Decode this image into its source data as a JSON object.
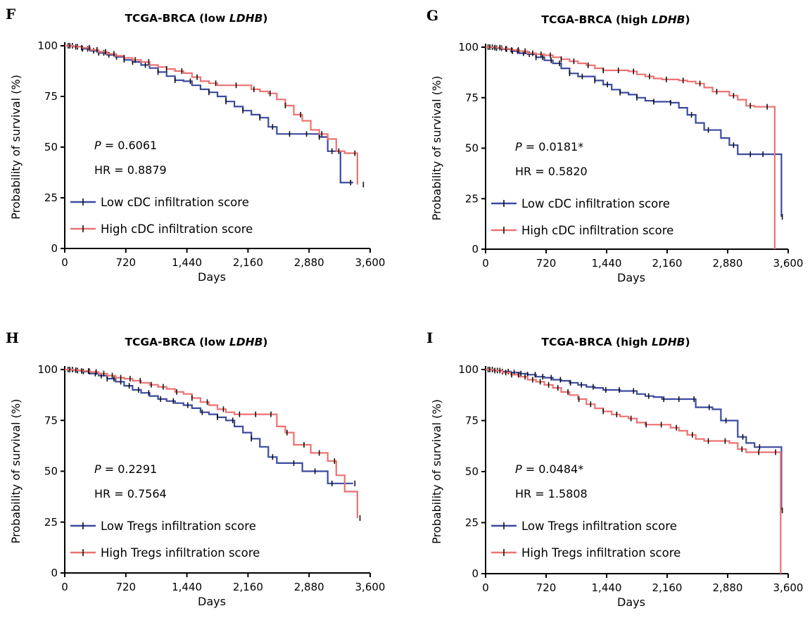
{
  "colors": {
    "low": "#3b4aa0",
    "high": "#ec7272",
    "censor": "#111111",
    "axis": "#000000"
  },
  "chart_data": [
    {
      "type": "line",
      "panel": "F",
      "title_prefix": "TCGA-BRCA (low ",
      "title_gene": "LDHB",
      "title_suffix": ")",
      "xlabel": "Days",
      "ylabel": "Probability of survival (%)",
      "xlim": [
        0,
        3600
      ],
      "ylim": [
        0,
        100
      ],
      "xticks": [
        0,
        720,
        1440,
        2160,
        2880,
        3600
      ],
      "xtick_labels": [
        "0",
        "720",
        "1,440",
        "2,160",
        "2,880",
        "3,600"
      ],
      "yticks": [
        0,
        25,
        50,
        75,
        100
      ],
      "ytick_labels": [
        "0",
        "25",
        "50",
        "75",
        "100"
      ],
      "p_label": "P",
      "p_value": " = 0.6061",
      "hr_text": "HR = 0.8879",
      "grid": false,
      "legend_position": "bottom-left",
      "series": [
        {
          "name": "Low cDC infiltration score",
          "color_key": "low",
          "x": [
            0,
            100,
            200,
            300,
            400,
            500,
            600,
            700,
            800,
            900,
            1000,
            1100,
            1200,
            1300,
            1400,
            1500,
            1600,
            1700,
            1800,
            1900,
            2000,
            2100,
            2200,
            2300,
            2400,
            2500,
            2600,
            2700,
            2800,
            2900,
            3000,
            3100,
            3200,
            3250,
            3400
          ],
          "y": [
            100,
            99.5,
            98.5,
            97.5,
            96.5,
            95.5,
            94.5,
            93,
            92,
            90.5,
            89,
            87,
            85,
            83,
            82.5,
            80.5,
            78.5,
            77,
            75,
            72.5,
            70,
            68,
            66,
            64.5,
            60,
            56.5,
            56.5,
            56.5,
            56.5,
            56.5,
            55,
            48,
            48,
            32.5,
            32.5
          ],
          "censor_x": [
            40,
            90,
            150,
            210,
            270,
            340,
            400,
            460,
            520,
            610,
            700,
            800,
            950,
            1100,
            1300,
            1480,
            1700,
            1900,
            2100,
            2300,
            2450,
            2650,
            2850,
            3000,
            3150,
            3370
          ]
        },
        {
          "name": "High cDC infiltration score",
          "color_key": "high",
          "x": [
            0,
            100,
            200,
            300,
            400,
            500,
            600,
            700,
            800,
            900,
            1000,
            1100,
            1200,
            1300,
            1400,
            1500,
            1600,
            1700,
            1800,
            1900,
            2000,
            2100,
            2200,
            2300,
            2400,
            2500,
            2600,
            2700,
            2800,
            2900,
            3000,
            3100,
            3200,
            3300,
            3400,
            3450
          ],
          "y": [
            100,
            99.5,
            99,
            98,
            97,
            96,
            95,
            94,
            93,
            92,
            90.5,
            89.5,
            88.5,
            87.5,
            86.5,
            84.5,
            82.5,
            81.5,
            80.5,
            80.5,
            80.5,
            80.5,
            78.5,
            77.5,
            76.5,
            73.5,
            70.5,
            66,
            63,
            58.5,
            56.5,
            54,
            48,
            47,
            47,
            31.5
          ],
          "censor_x": [
            60,
            130,
            200,
            290,
            380,
            480,
            580,
            700,
            830,
            990,
            1200,
            1380,
            1560,
            1780,
            2020,
            2230,
            2420,
            2600,
            2780,
            3030,
            3230,
            3420,
            3520
          ]
        }
      ]
    },
    {
      "type": "line",
      "panel": "G",
      "title_prefix": "TCGA-BRCA (high ",
      "title_gene": "LDHB",
      "title_suffix": ")",
      "xlabel": "Days",
      "ylabel": "Probability of survival (%)",
      "xlim": [
        0,
        3600
      ],
      "ylim": [
        0,
        100
      ],
      "xticks": [
        0,
        720,
        1440,
        2160,
        2880,
        3600
      ],
      "xtick_labels": [
        "0",
        "720",
        "1,440",
        "2,160",
        "2,880",
        "3,600"
      ],
      "yticks": [
        0,
        25,
        50,
        75,
        100
      ],
      "ytick_labels": [
        "0",
        "25",
        "50",
        "75",
        "100"
      ],
      "p_label": "P",
      "p_value": " = 0.0181*",
      "hr_text": "HR = 0.5820",
      "grid": false,
      "legend_position": "bottom-left",
      "series": [
        {
          "name": "Low cDC infiltration score",
          "color_key": "low",
          "x": [
            0,
            100,
            200,
            300,
            400,
            500,
            600,
            700,
            800,
            900,
            1000,
            1100,
            1200,
            1300,
            1400,
            1500,
            1600,
            1700,
            1800,
            1900,
            2000,
            2100,
            2200,
            2300,
            2400,
            2500,
            2600,
            2700,
            2800,
            2900,
            3000,
            3100,
            3200,
            3300,
            3400,
            3500,
            3520
          ],
          "y": [
            100,
            99.5,
            99,
            98,
            97,
            96.5,
            95,
            93.5,
            92,
            89.5,
            87,
            85.5,
            85.5,
            83.5,
            81.5,
            79,
            77.5,
            76.5,
            75,
            73.5,
            73,
            73,
            72.5,
            70,
            66.5,
            62.5,
            59,
            59,
            55,
            51.5,
            47,
            47,
            47,
            47,
            47,
            47,
            16
          ],
          "censor_x": [
            30,
            80,
            130,
            190,
            250,
            320,
            380,
            450,
            520,
            600,
            680,
            780,
            880,
            1000,
            1150,
            1300,
            1450,
            1600,
            1800,
            2000,
            2200,
            2450,
            2650,
            2950,
            3150,
            3300,
            3530
          ]
        },
        {
          "name": "High cDC infiltration score",
          "color_key": "high",
          "x": [
            0,
            100,
            200,
            300,
            400,
            500,
            600,
            700,
            800,
            900,
            1000,
            1100,
            1200,
            1300,
            1400,
            1500,
            1600,
            1700,
            1800,
            1900,
            2000,
            2100,
            2200,
            2300,
            2400,
            2500,
            2600,
            2700,
            2800,
            2900,
            3000,
            3100,
            3200,
            3300,
            3400,
            3440
          ],
          "y": [
            100,
            99.8,
            99.2,
            98.6,
            98,
            97,
            96.5,
            96,
            95,
            94,
            93,
            92,
            91,
            89.5,
            88.5,
            88.5,
            88.5,
            88,
            86.5,
            85.5,
            84.5,
            84,
            84,
            83.5,
            83,
            82,
            80,
            78,
            78,
            76,
            74,
            71,
            70.5,
            70.5,
            70.5,
            0
          ],
          "censor_x": [
            50,
            110,
            170,
            240,
            310,
            390,
            470,
            560,
            660,
            770,
            900,
            1050,
            1220,
            1400,
            1580,
            1760,
            1950,
            2150,
            2350,
            2550,
            2750,
            2950,
            3150,
            3350
          ]
        }
      ]
    },
    {
      "type": "line",
      "panel": "H",
      "title_prefix": "TCGA-BRCA (low ",
      "title_gene": "LDHB",
      "title_suffix": ")",
      "xlabel": "Days",
      "ylabel": "Probability of survival (%)",
      "xlim": [
        0,
        3600
      ],
      "ylim": [
        0,
        100
      ],
      "xticks": [
        0,
        720,
        1440,
        2160,
        2880,
        3600
      ],
      "xtick_labels": [
        "0",
        "720",
        "1,440",
        "2,160",
        "2,880",
        "3,600"
      ],
      "yticks": [
        0,
        25,
        50,
        75,
        100
      ],
      "ytick_labels": [
        "0",
        "25",
        "50",
        "75",
        "100"
      ],
      "p_label": "P",
      "p_value": " = 0.2291",
      "hr_text": "HR = 0.7564",
      "grid": false,
      "legend_position": "bottom-left",
      "series": [
        {
          "name": "Low Tregs infiltration score",
          "color_key": "low",
          "x": [
            0,
            100,
            200,
            300,
            400,
            500,
            600,
            700,
            800,
            900,
            1000,
            1100,
            1200,
            1300,
            1400,
            1500,
            1600,
            1700,
            1800,
            1900,
            2000,
            2100,
            2200,
            2300,
            2400,
            2500,
            2600,
            2700,
            2800,
            2900,
            3000,
            3100,
            3200,
            3300,
            3400
          ],
          "y": [
            100,
            99.5,
            99,
            98,
            97,
            95.5,
            94,
            92,
            90,
            88.5,
            87,
            85.5,
            84.5,
            83.5,
            82.5,
            81,
            79,
            78,
            76.5,
            75,
            72,
            69,
            66,
            62,
            57,
            54,
            54,
            54,
            50,
            50,
            50,
            44,
            44,
            44,
            44
          ],
          "censor_x": [
            40,
            90,
            150,
            220,
            290,
            360,
            430,
            500,
            580,
            660,
            760,
            870,
            990,
            1130,
            1280,
            1450,
            1620,
            1800,
            1980,
            2200,
            2450,
            2700,
            2950,
            3150,
            3420
          ]
        },
        {
          "name": "High Tregs infiltration score",
          "color_key": "high",
          "x": [
            0,
            100,
            200,
            300,
            400,
            500,
            600,
            700,
            800,
            900,
            1000,
            1100,
            1200,
            1300,
            1400,
            1500,
            1600,
            1700,
            1800,
            1900,
            2000,
            2100,
            2200,
            2300,
            2400,
            2500,
            2600,
            2700,
            2800,
            2900,
            3000,
            3100,
            3200,
            3300,
            3400,
            3450
          ],
          "y": [
            100,
            99.7,
            99.3,
            98.8,
            98,
            97,
            96,
            95.5,
            94.5,
            93.5,
            92.5,
            91.5,
            90.5,
            89,
            88,
            86,
            84,
            82.5,
            80.5,
            79,
            78,
            78,
            78,
            78,
            78,
            72,
            69,
            63,
            63,
            59,
            59,
            55,
            48,
            40,
            40,
            27
          ],
          "censor_x": [
            60,
            130,
            200,
            280,
            370,
            460,
            560,
            660,
            770,
            890,
            1020,
            1160,
            1320,
            1500,
            1680,
            1870,
            2060,
            2250,
            2430,
            2620,
            2820,
            3000,
            3180,
            3480
          ]
        }
      ]
    },
    {
      "type": "line",
      "panel": "I",
      "title_prefix": "TCGA-BRCA (high ",
      "title_gene": "LDHB",
      "title_suffix": ")",
      "xlabel": "Days",
      "ylabel": "Probability of survival (%)",
      "xlim": [
        0,
        3600
      ],
      "ylim": [
        0,
        100
      ],
      "xticks": [
        0,
        720,
        1440,
        2160,
        2880,
        3600
      ],
      "xtick_labels": [
        "0",
        "720",
        "1,440",
        "2,160",
        "2,880",
        "3,600"
      ],
      "yticks": [
        0,
        25,
        50,
        75,
        100
      ],
      "ytick_labels": [
        "0",
        "25",
        "50",
        "75",
        "100"
      ],
      "p_label": "P",
      "p_value": " = 0.0484*",
      "hr_text": "HR = 1.5808",
      "grid": false,
      "legend_position": "bottom-left",
      "series": [
        {
          "name": "Low Tregs infiltration score",
          "color_key": "low",
          "x": [
            0,
            100,
            200,
            300,
            400,
            500,
            600,
            700,
            800,
            900,
            1000,
            1100,
            1200,
            1300,
            1400,
            1500,
            1600,
            1700,
            1800,
            1900,
            2000,
            2100,
            2200,
            2300,
            2400,
            2500,
            2600,
            2700,
            2800,
            2900,
            3000,
            3100,
            3200,
            3300,
            3400,
            3500,
            3520
          ],
          "y": [
            100,
            99.5,
            99,
            98.5,
            98,
            97.5,
            96.5,
            96,
            95,
            94.5,
            93.5,
            92.5,
            91.5,
            91,
            90,
            90,
            89.5,
            89.5,
            88,
            87,
            86.5,
            85.5,
            85.5,
            85.5,
            85.5,
            81.5,
            81.5,
            80.5,
            75,
            75,
            67,
            64,
            62,
            62,
            62,
            62,
            31
          ],
          "censor_x": [
            30,
            80,
            140,
            200,
            270,
            340,
            420,
            500,
            590,
            680,
            780,
            890,
            1010,
            1140,
            1280,
            1430,
            1590,
            1760,
            1940,
            2120,
            2300,
            2480,
            2660,
            2860,
            3060,
            3260,
            3530
          ]
        },
        {
          "name": "High Tregs infiltration score",
          "color_key": "high",
          "x": [
            0,
            100,
            200,
            300,
            400,
            500,
            600,
            700,
            800,
            900,
            1000,
            1100,
            1200,
            1300,
            1400,
            1500,
            1600,
            1700,
            1800,
            1900,
            2000,
            2100,
            2200,
            2300,
            2400,
            2500,
            2600,
            2700,
            2800,
            2900,
            3000,
            3100,
            3200,
            3300,
            3400,
            3500,
            3510
          ],
          "y": [
            100,
            99.5,
            98.5,
            97.5,
            96.5,
            95,
            94,
            92.5,
            91,
            89,
            87.5,
            85.5,
            83,
            81,
            79.5,
            78,
            77,
            76,
            74,
            73,
            73,
            73,
            71.5,
            70,
            68,
            66,
            65,
            65,
            65,
            64,
            61,
            59.5,
            59.5,
            59.5,
            59.5,
            59.5,
            0
          ],
          "censor_x": [
            50,
            110,
            170,
            240,
            310,
            390,
            470,
            560,
            650,
            750,
            860,
            980,
            1110,
            1250,
            1400,
            1560,
            1730,
            1910,
            2090,
            2270,
            2460,
            2650,
            2850,
            3050,
            3250,
            3450
          ]
        }
      ]
    }
  ]
}
